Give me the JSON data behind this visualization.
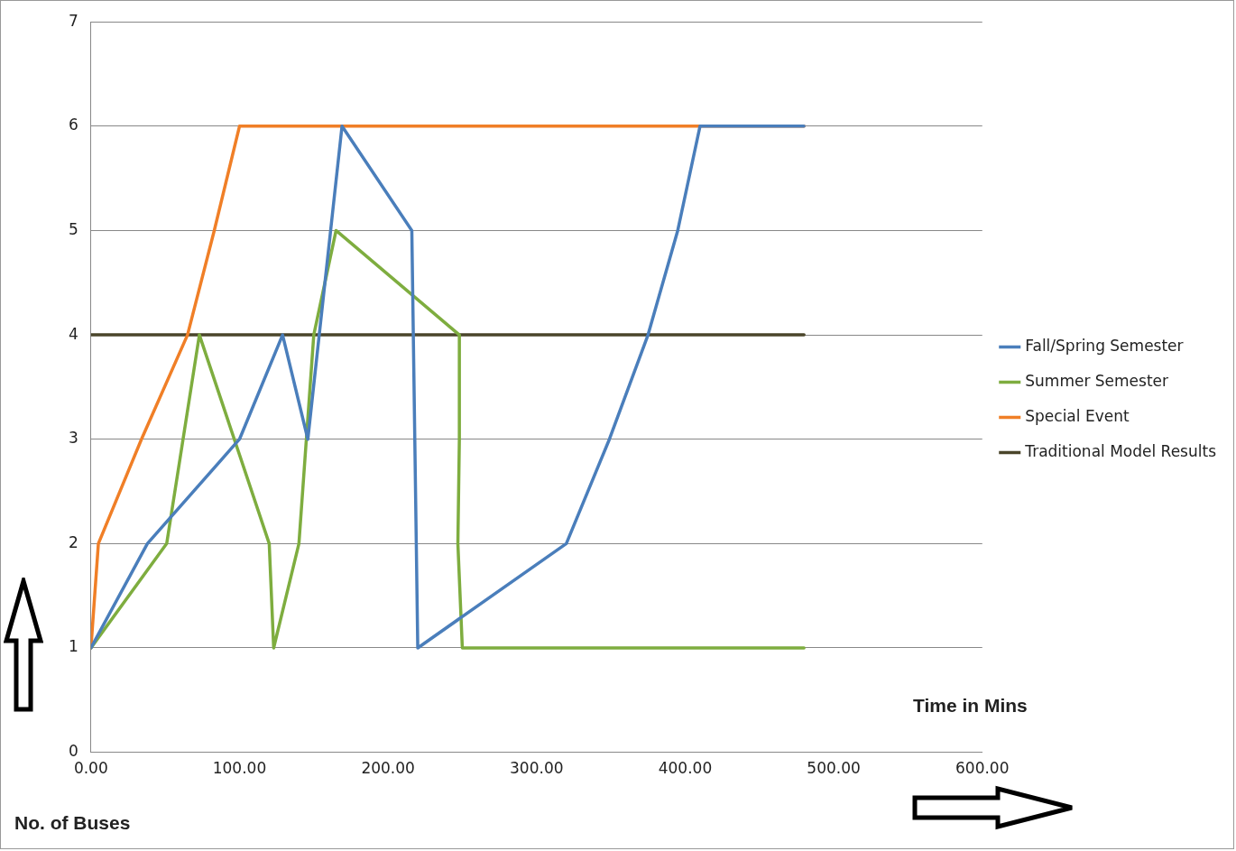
{
  "chart_data": {
    "type": "line",
    "xlabel": "Time in Mins",
    "ylabel": "No. of Buses",
    "xlim": [
      0,
      600
    ],
    "xticks": [
      {
        "value": 0,
        "label": "0.00"
      },
      {
        "value": 100,
        "label": "100.00"
      },
      {
        "value": 200,
        "label": "200.00"
      },
      {
        "value": 300,
        "label": "300.00"
      },
      {
        "value": 400,
        "label": "400.00"
      },
      {
        "value": 500,
        "label": "500.00"
      },
      {
        "value": 600,
        "label": "600.00"
      }
    ],
    "ylim": [
      0,
      7
    ],
    "yticks": [
      0,
      1,
      2,
      3,
      4,
      5,
      6,
      7
    ],
    "grid": "y",
    "legend": "right",
    "marker": "none",
    "line_style": "solid",
    "series": [
      {
        "name": "Fall/Spring Semester",
        "color": "#4a7ebb",
        "x": [
          0,
          38,
          100,
          129,
          146,
          169,
          216,
          219,
          220,
          320,
          349,
          375,
          395,
          410,
          480
        ],
        "values": [
          1,
          2,
          3,
          4,
          3,
          6,
          5,
          2,
          1,
          2,
          3,
          4,
          5,
          6,
          6
        ]
      },
      {
        "name": "Summer Semester",
        "color": "#7ead3f",
        "x": [
          0,
          51,
          73,
          120,
          123,
          140,
          150,
          165,
          248,
          248,
          247,
          250,
          480
        ],
        "values": [
          1,
          2,
          4,
          2,
          1,
          2,
          4,
          5,
          4,
          3,
          2,
          1,
          1
        ]
      },
      {
        "name": "Special Event",
        "color": "#f07f27",
        "x": [
          0,
          5,
          34,
          65,
          83,
          100,
          480
        ],
        "values": [
          1,
          2,
          3,
          4,
          5,
          6,
          6
        ]
      },
      {
        "name": "Traditional Model Results",
        "color": "#4a452a",
        "x": [
          0,
          480
        ],
        "values": [
          4,
          4
        ]
      }
    ]
  }
}
